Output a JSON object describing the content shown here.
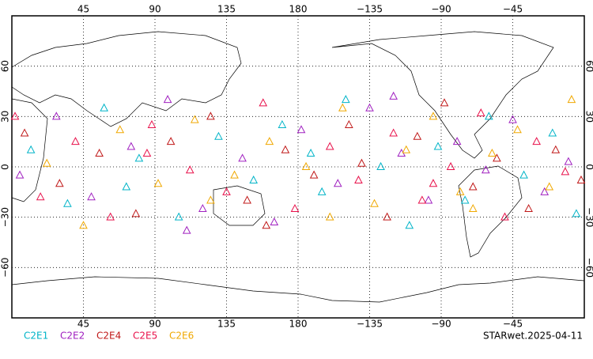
{
  "chart_data": {
    "type": "scatter",
    "footer": "STARwet.2025-04-11",
    "xlim": [
      0,
      360
    ],
    "ylim": [
      -90,
      90
    ],
    "xticks": [
      45,
      90,
      135,
      180,
      {
        "value": 225,
        "label": "−135"
      },
      {
        "value": 270,
        "label": "−90"
      },
      {
        "value": 315,
        "label": "−45"
      }
    ],
    "yticks": [
      {
        "value": -60,
        "label": "−60"
      },
      {
        "value": -30,
        "label": "−30"
      },
      0,
      30,
      60
    ],
    "grid": true,
    "series": [
      {
        "name": "C2E1",
        "color": "#00b4c8",
        "x": [
          12,
          35,
          58,
          80,
          105,
          130,
          152,
          170,
          195,
          210,
          232,
          250,
          268,
          285,
          300,
          322,
          340,
          355,
          72,
          188
        ],
        "values": [
          10,
          -22,
          35,
          5,
          -30,
          18,
          -8,
          25,
          -15,
          40,
          0,
          -35,
          12,
          -20,
          30,
          -5,
          20,
          -28,
          -12,
          8
        ]
      },
      {
        "name": "C2E2",
        "color": "#a020c0",
        "x": [
          5,
          28,
          50,
          75,
          98,
          120,
          145,
          165,
          182,
          205,
          225,
          245,
          262,
          280,
          298,
          315,
          335,
          350,
          110,
          240
        ],
        "values": [
          -5,
          30,
          -18,
          12,
          40,
          -25,
          5,
          -33,
          22,
          -10,
          35,
          8,
          -20,
          15,
          -2,
          28,
          -15,
          3,
          -38,
          42
        ]
      },
      {
        "name": "C2E4",
        "color": "#c01818",
        "x": [
          8,
          30,
          55,
          78,
          100,
          125,
          148,
          172,
          190,
          212,
          236,
          255,
          272,
          290,
          305,
          325,
          342,
          358,
          160,
          220
        ],
        "values": [
          20,
          -10,
          8,
          -28,
          15,
          30,
          -20,
          10,
          -5,
          25,
          -30,
          18,
          38,
          -12,
          5,
          -25,
          10,
          -8,
          -35,
          2
        ]
      },
      {
        "name": "C2E5",
        "color": "#e8104a",
        "x": [
          18,
          40,
          62,
          88,
          112,
          135,
          158,
          178,
          200,
          218,
          240,
          258,
          276,
          295,
          310,
          330,
          348,
          2,
          85,
          265
        ],
        "values": [
          -18,
          15,
          -30,
          25,
          -2,
          -15,
          38,
          -25,
          12,
          -8,
          20,
          -20,
          0,
          32,
          -30,
          15,
          -3,
          30,
          8,
          -10
        ]
      },
      {
        "name": "C2E6",
        "color": "#f0a800",
        "x": [
          22,
          45,
          68,
          92,
          115,
          140,
          162,
          185,
          208,
          228,
          248,
          265,
          282,
          302,
          318,
          338,
          352,
          125,
          200,
          290
        ],
        "values": [
          2,
          -35,
          22,
          -10,
          28,
          -5,
          15,
          0,
          35,
          -22,
          10,
          30,
          -15,
          8,
          22,
          -12,
          40,
          -20,
          -30,
          -25
        ]
      }
    ]
  }
}
